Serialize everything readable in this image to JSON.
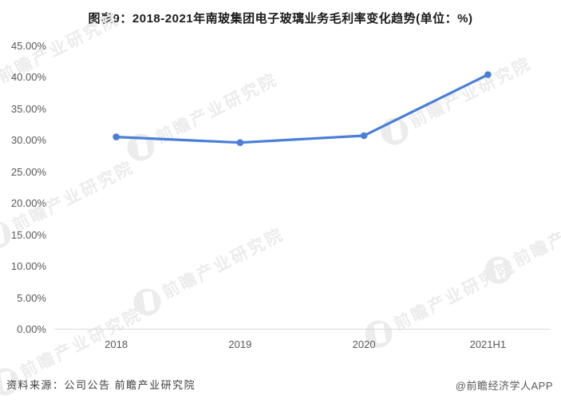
{
  "title": "图表9：2018-2021年南玻集团电子玻璃业务毛利率变化趋势(单位：%)",
  "watermark": {
    "text": "前瞻产业研究院",
    "color": "#ececec"
  },
  "footer": {
    "source": "资料来源：公司公告 前瞻产业研究院",
    "credit": "@前瞻经济学人APP"
  },
  "chart_data": {
    "type": "line",
    "title": "图表9：2018-2021年南玻集团电子玻璃业务毛利率变化趋势(单位：%)",
    "categories": [
      "2018",
      "2019",
      "2020",
      "2021H1"
    ],
    "series": [
      {
        "name": "电子玻璃业务毛利率",
        "values": [
          30.6,
          29.7,
          30.8,
          40.5
        ]
      }
    ],
    "unit": "%",
    "xlabel": "",
    "ylabel": "",
    "ylim": [
      0,
      45
    ],
    "ytick_step": 5,
    "ytick_labels": [
      "0.00%",
      "5.00%",
      "10.00%",
      "15.00%",
      "20.00%",
      "25.00%",
      "30.00%",
      "35.00%",
      "40.00%",
      "45.00%"
    ],
    "grid": false,
    "legend": false,
    "line_color": "#4a7ed9",
    "marker": "circle"
  }
}
